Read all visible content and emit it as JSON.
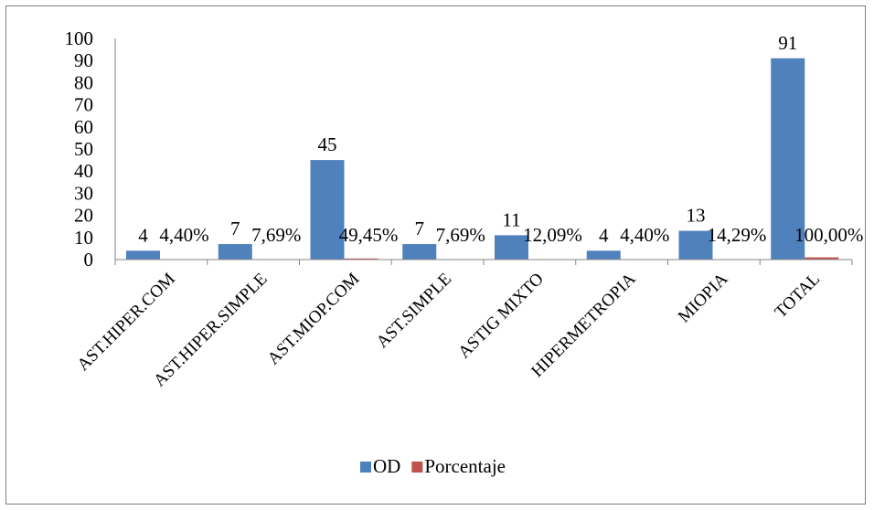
{
  "chart_data": {
    "type": "bar",
    "title": "",
    "xlabel": "",
    "ylabel": "",
    "ylim": [
      0,
      100
    ],
    "yticks": [
      0,
      10,
      20,
      30,
      40,
      50,
      60,
      70,
      80,
      90,
      100
    ],
    "categories": [
      "AST.HIPER.COM",
      "AST.HIPER.SIMPLE",
      "AST.MIOP.COM",
      "AST.SIMPLE",
      "ASTIG MIXTO",
      "HIPERMETROPIA",
      "MIOPIA",
      "TOTAL"
    ],
    "series": [
      {
        "name": "OD",
        "color": "#4f81bd",
        "values": [
          4,
          7,
          45,
          7,
          11,
          4,
          13,
          91
        ],
        "labels": [
          "4",
          "7",
          "45",
          "7",
          "11",
          "4",
          "13",
          "91"
        ]
      },
      {
        "name": "Porcentaje",
        "color": "#c0504d",
        "values": [
          0.044,
          0.0769,
          0.4945,
          0.0769,
          0.1209,
          0.044,
          0.1429,
          1.0
        ],
        "labels": [
          "4,40%",
          "7,69%",
          "49,45%",
          "7,69%",
          "12,09%",
          "4,40%",
          "14,29%",
          "100,00%"
        ]
      }
    ],
    "legend_position": "bottom",
    "grid": false
  }
}
